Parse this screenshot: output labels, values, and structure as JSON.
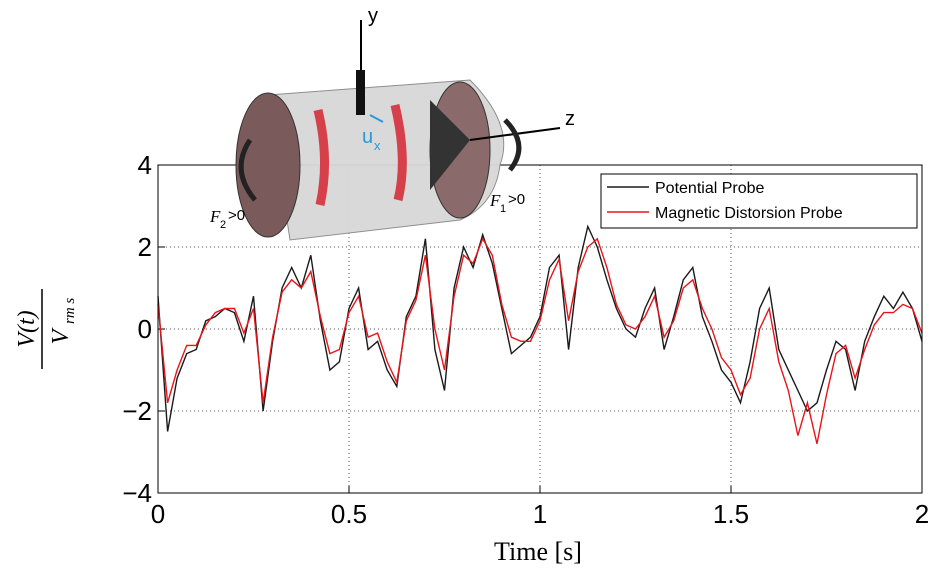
{
  "chart_data": {
    "type": "line",
    "xlabel": "Time [s]",
    "ylabel": {
      "numerator": "V(t)",
      "denominator": "V",
      "denominator_subscript": "rm s"
    },
    "x": [
      0,
      0.025,
      0.05,
      0.075,
      0.1,
      0.125,
      0.15,
      0.175,
      0.2,
      0.225,
      0.25,
      0.275,
      0.3,
      0.325,
      0.35,
      0.375,
      0.4,
      0.425,
      0.45,
      0.475,
      0.5,
      0.525,
      0.55,
      0.575,
      0.6,
      0.625,
      0.65,
      0.675,
      0.7,
      0.725,
      0.75,
      0.775,
      0.8,
      0.825,
      0.85,
      0.875,
      0.9,
      0.925,
      0.95,
      0.975,
      1,
      1.025,
      1.05,
      1.075,
      1.1,
      1.125,
      1.15,
      1.175,
      1.2,
      1.225,
      1.25,
      1.275,
      1.3,
      1.325,
      1.35,
      1.375,
      1.4,
      1.425,
      1.45,
      1.475,
      1.5,
      1.525,
      1.55,
      1.575,
      1.6,
      1.625,
      1.65,
      1.675,
      1.7,
      1.725,
      1.75,
      1.775,
      1.8,
      1.825,
      1.85,
      1.875,
      1.9,
      1.925,
      1.95,
      1.975,
      2
    ],
    "series": [
      {
        "name": "Potential Probe",
        "color": "#1a1a1a",
        "values": [
          0.8,
          -2.5,
          -1.2,
          -0.6,
          -0.5,
          0.2,
          0.3,
          0.5,
          0.4,
          -0.3,
          0.8,
          -2.0,
          -0.3,
          1.0,
          1.5,
          1.0,
          1.8,
          0.2,
          -1.0,
          -0.8,
          0.5,
          1.0,
          -0.5,
          -0.3,
          -1.0,
          -1.4,
          0.3,
          0.8,
          2.2,
          -0.5,
          -1.5,
          1.0,
          2.0,
          1.5,
          2.3,
          1.6,
          0.5,
          -0.6,
          -0.4,
          -0.2,
          0.3,
          1.5,
          1.8,
          -0.5,
          1.5,
          2.5,
          2.0,
          1.2,
          0.5,
          0.0,
          -0.2,
          0.5,
          1.0,
          -0.5,
          0.3,
          1.2,
          1.5,
          0.3,
          -0.3,
          -1.0,
          -1.3,
          -1.8,
          -0.8,
          0.5,
          1.0,
          -0.5,
          -1.0,
          -1.5,
          -2.0,
          -1.8,
          -1.0,
          -0.3,
          -0.5,
          -1.5,
          -0.3,
          0.3,
          0.8,
          0.5,
          0.9,
          0.5,
          -0.3
        ]
      },
      {
        "name": "Magnetic Distorsion Probe",
        "color": "#e8141a",
        "values": [
          0.6,
          -1.8,
          -1.0,
          -0.4,
          -0.4,
          0.1,
          0.4,
          0.5,
          0.5,
          -0.1,
          0.5,
          -1.8,
          -0.2,
          0.9,
          1.2,
          1.0,
          1.4,
          0.3,
          -0.6,
          -0.5,
          0.4,
          0.8,
          -0.2,
          -0.1,
          -0.8,
          -1.3,
          0.2,
          0.7,
          1.8,
          0.0,
          -1.0,
          0.8,
          1.8,
          1.6,
          2.2,
          1.8,
          0.6,
          -0.2,
          -0.3,
          -0.3,
          0.2,
          1.2,
          1.7,
          0.2,
          1.4,
          2.0,
          2.2,
          1.5,
          0.6,
          0.1,
          0.0,
          0.3,
          0.8,
          -0.2,
          0.2,
          1.0,
          1.2,
          0.5,
          0.0,
          -0.7,
          -1.0,
          -1.6,
          -1.2,
          0.0,
          0.5,
          -0.8,
          -1.5,
          -2.6,
          -1.8,
          -2.8,
          -1.6,
          -0.6,
          -0.4,
          -1.2,
          -0.5,
          0.1,
          0.4,
          0.4,
          0.6,
          0.5,
          -0.1
        ]
      }
    ],
    "xlim": [
      0,
      2
    ],
    "ylim": [
      -4,
      4
    ],
    "xticks": [
      0,
      0.5,
      1,
      1.5,
      2
    ],
    "yticks": [
      {
        "value": -4,
        "label": "−4"
      },
      {
        "value": -2,
        "label": "−2"
      },
      0,
      2,
      4
    ],
    "grid": true,
    "legend": "upper right"
  },
  "inset": {
    "y_axis": "y",
    "z_axis": "z",
    "velocity": "u",
    "velocity_subscript": "x",
    "force_2": "F",
    "force_2_subscript": "2",
    "force_2_condition": ">0",
    "force_1": "F",
    "force_1_subscript": "1",
    "force_1_condition": ">0"
  }
}
